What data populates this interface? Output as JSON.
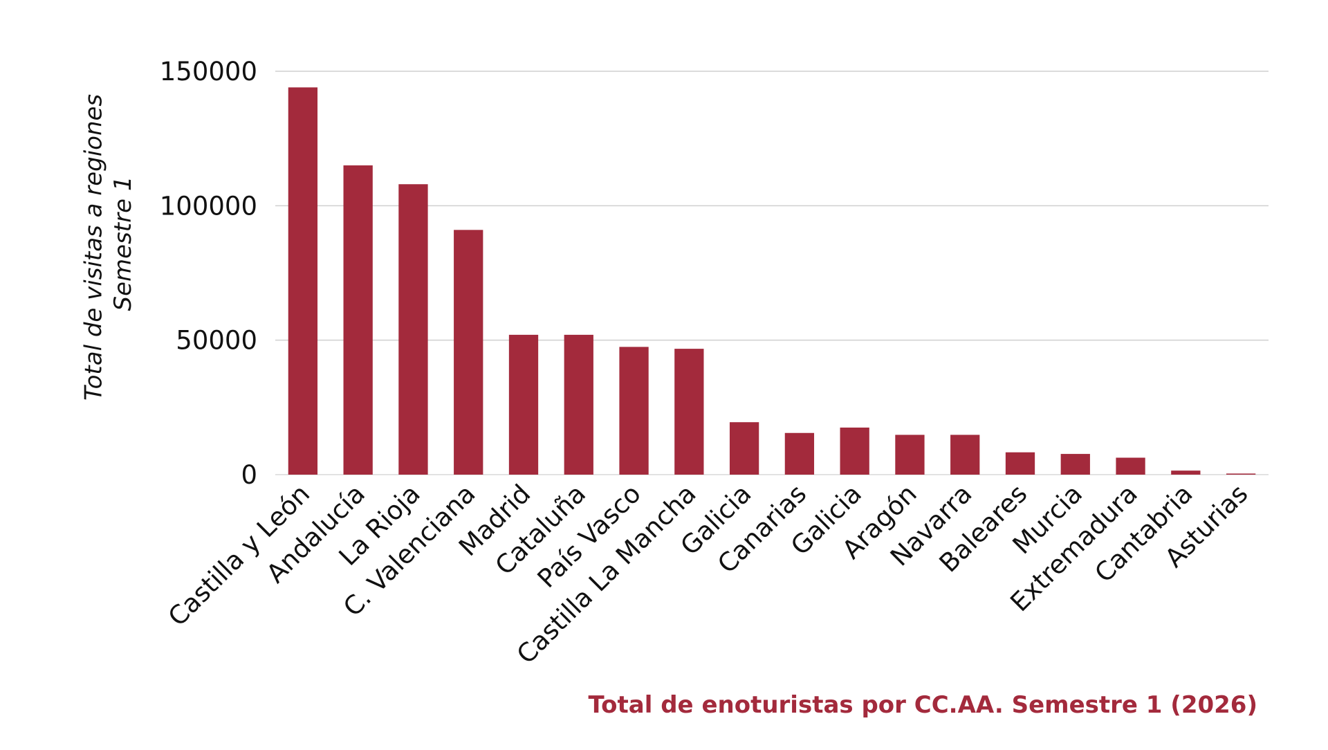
{
  "chart_data": {
    "type": "bar",
    "title": "Total de enoturistas por CC.AA. Semestre 1 (2026)",
    "xlabel": "",
    "ylabel_lines": [
      "Total de visitas a regiones",
      "Semestre 1"
    ],
    "ylim": [
      0,
      150000
    ],
    "yticks": [
      0,
      50000,
      100000,
      150000
    ],
    "ytick_labels": [
      "0",
      "50000",
      "100000",
      "150000"
    ],
    "grid": true,
    "legend": "none",
    "bar_color": "#a32a3c",
    "title_color": "#a32a3c",
    "categories": [
      "Castilla y León",
      "Andalucía",
      "La Rioja",
      "C. Valenciana",
      "Madrid",
      "Cataluña",
      "País Vasco",
      "Castilla La Mancha",
      "Galicia",
      "Canarias",
      "Galicia",
      "Aragón",
      "Navarra",
      "Baleares",
      "Murcia",
      "Extremadura",
      "Cantabria",
      "Asturias"
    ],
    "values": [
      144000,
      115000,
      108000,
      91000,
      52000,
      52000,
      47500,
      46800,
      19500,
      15500,
      17500,
      14800,
      14800,
      8300,
      7700,
      6300,
      1500,
      400
    ]
  }
}
